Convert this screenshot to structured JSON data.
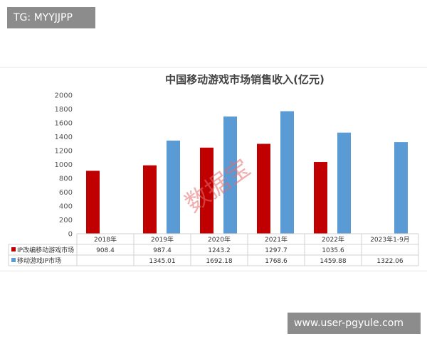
{
  "badges": {
    "top_left": "TG: MYYJJPP",
    "bottom_right": "www.user-pgyule.com"
  },
  "watermark": "数据宝",
  "colors": {
    "ip_adapted": "#c00000",
    "mobile_ip": "#5b9bd5",
    "grid": "#e8e8e8",
    "table_border": "#d0d0d0"
  },
  "chart_data": {
    "type": "bar",
    "title": "中国移动游戏市场销售收入(亿元)",
    "categories": [
      "2018年",
      "2019年",
      "2020年",
      "2021年",
      "2022年",
      "2023年1-9月"
    ],
    "ylim": [
      0,
      2000
    ],
    "yticks": [
      "0",
      "200",
      "400",
      "600",
      "800",
      "1000",
      "1200",
      "1400",
      "1600",
      "1800",
      "2000"
    ],
    "grid": false,
    "legend": "data-table",
    "series": [
      {
        "name": "IP改编移动游戏市场",
        "color": "#c00000",
        "values": [
          908.4,
          987.4,
          1243.2,
          1297.7,
          1035.6,
          null
        ],
        "labels": [
          "908.4",
          "987.4",
          "1243.2",
          "1297.7",
          "1035.6",
          ""
        ]
      },
      {
        "name": "移动游戏IP市场",
        "color": "#5b9bd5",
        "values": [
          null,
          1345.01,
          1692.18,
          1768.6,
          1459.88,
          1322.06
        ],
        "labels": [
          "",
          "1345.01",
          "1692.18",
          "1768.6",
          "1459.88",
          "1322.06"
        ]
      }
    ]
  }
}
